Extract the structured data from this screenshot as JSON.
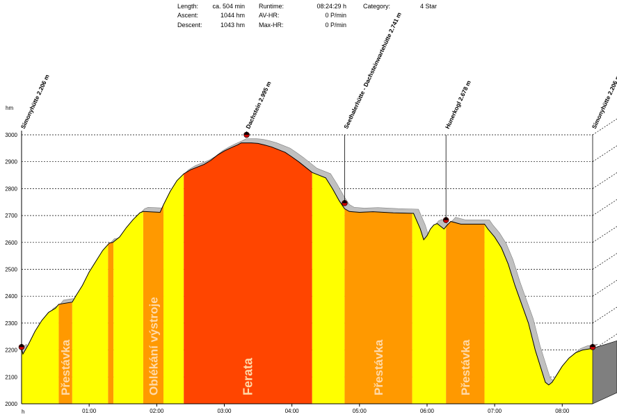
{
  "stats": {
    "length_label": "Length:",
    "length_value": "ca. 504 min",
    "ascent_label": "Ascent:",
    "ascent_value": "1044 hm",
    "descent_label": "Descent:",
    "descent_value": "1043 hm",
    "runtime_label": "Runtime:",
    "runtime_value": "08:24:29 h",
    "avhr_label": "AV-HR:",
    "avhr_value": "0 P/min",
    "maxhr_label": "Max-HR:",
    "maxhr_value": "0 P/min",
    "category_label": "Category:",
    "category_value": "4 Star"
  },
  "colors": {
    "background": "#ffffff",
    "hiking": "#ffff00",
    "rest": "#ff9900",
    "ferrata": "#ff4500",
    "shadow": "#c0c0c0",
    "grid": "#000000",
    "marker": "#cc0000",
    "band_text": "#ffd9a8"
  },
  "chart_data": {
    "type": "area",
    "ylabel": "hm",
    "x_unit": "h",
    "ylim": [
      2000,
      3000
    ],
    "xlim": [
      0,
      8.45
    ],
    "y_ticks": [
      2000,
      2100,
      2200,
      2300,
      2400,
      2500,
      2600,
      2700,
      2800,
      2900,
      3000
    ],
    "x_ticks": [
      {
        "x": 1,
        "label": "01:00"
      },
      {
        "x": 2,
        "label": "02:00"
      },
      {
        "x": 3,
        "label": "03:00"
      },
      {
        "x": 4,
        "label": "04:00"
      },
      {
        "x": 5,
        "label": "05:00"
      },
      {
        "x": 6,
        "label": "06:00"
      },
      {
        "x": 7,
        "label": "07:00"
      },
      {
        "x": 8,
        "label": "08:00"
      }
    ],
    "x_origin_label": "h",
    "grid": true,
    "profile": [
      [
        0.0,
        2206
      ],
      [
        0.02,
        2185
      ],
      [
        0.1,
        2220
      ],
      [
        0.2,
        2270
      ],
      [
        0.3,
        2310
      ],
      [
        0.4,
        2340
      ],
      [
        0.5,
        2355
      ],
      [
        0.55,
        2370
      ],
      [
        0.75,
        2378
      ],
      [
        0.8,
        2400
      ],
      [
        0.9,
        2440
      ],
      [
        1.0,
        2490
      ],
      [
        1.1,
        2530
      ],
      [
        1.2,
        2570
      ],
      [
        1.3,
        2598
      ],
      [
        1.35,
        2600
      ],
      [
        1.45,
        2620
      ],
      [
        1.55,
        2655
      ],
      [
        1.65,
        2685
      ],
      [
        1.75,
        2710
      ],
      [
        1.8,
        2715
      ],
      [
        2.05,
        2712
      ],
      [
        2.1,
        2740
      ],
      [
        2.2,
        2790
      ],
      [
        2.3,
        2830
      ],
      [
        2.4,
        2855
      ],
      [
        2.5,
        2870
      ],
      [
        2.6,
        2880
      ],
      [
        2.7,
        2890
      ],
      [
        2.8,
        2905
      ],
      [
        2.9,
        2925
      ],
      [
        3.0,
        2940
      ],
      [
        3.1,
        2952
      ],
      [
        3.2,
        2963
      ],
      [
        3.25,
        2970
      ],
      [
        3.4,
        2970
      ],
      [
        3.5,
        2968
      ],
      [
        3.6,
        2962
      ],
      [
        3.7,
        2955
      ],
      [
        3.8,
        2945
      ],
      [
        3.9,
        2935
      ],
      [
        4.0,
        2918
      ],
      [
        4.1,
        2900
      ],
      [
        4.2,
        2880
      ],
      [
        4.3,
        2860
      ],
      [
        4.4,
        2850
      ],
      [
        4.5,
        2840
      ],
      [
        4.6,
        2800
      ],
      [
        4.7,
        2755
      ],
      [
        4.78,
        2725
      ],
      [
        4.85,
        2715
      ],
      [
        5.0,
        2712
      ],
      [
        5.2,
        2714
      ],
      [
        5.5,
        2710
      ],
      [
        5.8,
        2708
      ],
      [
        5.9,
        2650
      ],
      [
        5.95,
        2610
      ],
      [
        6.0,
        2625
      ],
      [
        6.05,
        2650
      ],
      [
        6.1,
        2665
      ],
      [
        6.15,
        2670
      ],
      [
        6.2,
        2660
      ],
      [
        6.25,
        2650
      ],
      [
        6.3,
        2665
      ],
      [
        6.35,
        2678
      ],
      [
        6.5,
        2668
      ],
      [
        6.85,
        2668
      ],
      [
        6.9,
        2650
      ],
      [
        7.0,
        2620
      ],
      [
        7.1,
        2580
      ],
      [
        7.2,
        2520
      ],
      [
        7.3,
        2440
      ],
      [
        7.4,
        2370
      ],
      [
        7.5,
        2300
      ],
      [
        7.6,
        2200
      ],
      [
        7.7,
        2120
      ],
      [
        7.75,
        2080
      ],
      [
        7.8,
        2070
      ],
      [
        7.85,
        2080
      ],
      [
        7.9,
        2100
      ],
      [
        8.0,
        2140
      ],
      [
        8.1,
        2170
      ],
      [
        8.2,
        2190
      ],
      [
        8.3,
        2200
      ],
      [
        8.45,
        2206
      ]
    ],
    "segments": [
      {
        "start": 0.0,
        "end": 0.55,
        "kind": "hiking",
        "label": ""
      },
      {
        "start": 0.55,
        "end": 0.75,
        "kind": "rest",
        "label": "Přestávka"
      },
      {
        "start": 0.75,
        "end": 1.28,
        "kind": "hiking",
        "label": ""
      },
      {
        "start": 1.28,
        "end": 1.36,
        "kind": "rest",
        "label": ""
      },
      {
        "start": 1.36,
        "end": 1.8,
        "kind": "hiking",
        "label": ""
      },
      {
        "start": 1.8,
        "end": 2.1,
        "kind": "rest",
        "label": "Oblékání výstroje"
      },
      {
        "start": 2.1,
        "end": 2.4,
        "kind": "hiking",
        "label": ""
      },
      {
        "start": 2.4,
        "end": 4.3,
        "kind": "ferrata",
        "label": "Ferata"
      },
      {
        "start": 4.3,
        "end": 4.78,
        "kind": "hiking",
        "label": ""
      },
      {
        "start": 4.78,
        "end": 5.78,
        "kind": "rest",
        "label": "Přestávka"
      },
      {
        "start": 5.78,
        "end": 6.28,
        "kind": "hiking",
        "label": ""
      },
      {
        "start": 6.28,
        "end": 6.85,
        "kind": "rest",
        "label": "Přestávka"
      },
      {
        "start": 6.85,
        "end": 8.45,
        "kind": "hiking",
        "label": ""
      }
    ],
    "waypoints": [
      {
        "x": 0.0,
        "y": 2206,
        "label": "Simonyhütte 2.206 m"
      },
      {
        "x": 3.33,
        "y": 2995,
        "label": "Dachstein 2.995 m"
      },
      {
        "x": 4.78,
        "y": 2741,
        "label": "Seethalerhütte - Dachsteinwartehütte 2.741 m"
      },
      {
        "x": 6.28,
        "y": 2678,
        "label": "Hunerkogl 2.678 m"
      },
      {
        "x": 8.45,
        "y": 2206,
        "label": "Simonyhütte 2.206 m"
      }
    ]
  }
}
